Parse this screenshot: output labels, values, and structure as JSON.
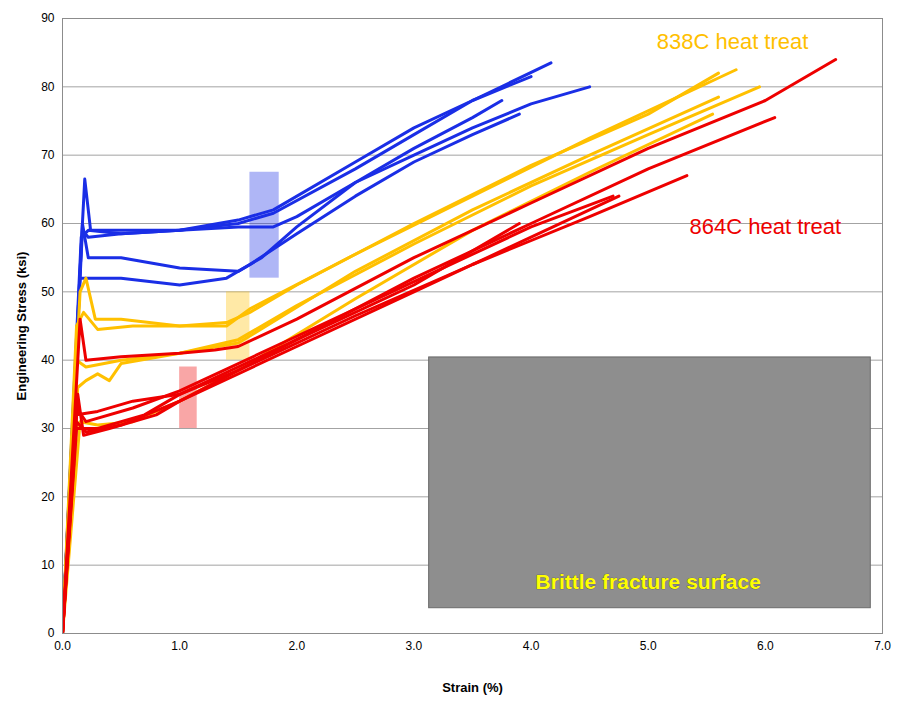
{
  "chart_data": {
    "type": "line",
    "x_label": "Strain (%)",
    "y_label": "Engineering Stress (ksi)",
    "xlim": [
      0,
      7
    ],
    "ylim": [
      0,
      90
    ],
    "xticks": [
      {
        "value": 0,
        "label": "0.0"
      },
      {
        "value": 1,
        "label": "1.0"
      },
      {
        "value": 2,
        "label": "2.0"
      },
      {
        "value": 3,
        "label": "3.0"
      },
      {
        "value": 4,
        "label": "4.0"
      },
      {
        "value": 5,
        "label": "5.0"
      },
      {
        "value": 6,
        "label": "6.0"
      },
      {
        "value": 7,
        "label": "7.0"
      }
    ],
    "yticks": [
      0,
      10,
      20,
      30,
      40,
      50,
      60,
      70,
      80,
      90
    ],
    "grid": true,
    "series": [
      {
        "color": "#1a2ee6",
        "x": [
          0,
          0.17,
          0.19,
          0.24,
          0.5,
          1.0,
          1.5,
          1.8,
          2.5,
          3.0,
          3.5,
          4.17
        ],
        "values": [
          0,
          60,
          66.5,
          59,
          59,
          59,
          60,
          61.5,
          68,
          73,
          78,
          83.5
        ]
      },
      {
        "color": "#1a2ee6",
        "x": [
          0,
          0.16,
          0.22,
          0.5,
          1.0,
          1.5,
          1.8,
          2.5,
          3.0,
          3.5,
          4.0
        ],
        "values": [
          0,
          58,
          59,
          58.5,
          59,
          60.5,
          62,
          69,
          74,
          78,
          81.5
        ]
      },
      {
        "color": "#1a2ee6",
        "x": [
          0,
          0.17,
          0.22,
          0.5,
          1.0,
          1.5,
          1.7,
          2.0,
          2.5,
          3.0,
          3.5,
          3.75
        ],
        "values": [
          0,
          60,
          55,
          55,
          53.5,
          53,
          55,
          59.5,
          66,
          71,
          75.5,
          78
        ]
      },
      {
        "color": "#1a2ee6",
        "x": [
          0,
          0.15,
          0.2,
          0.5,
          1.0,
          1.4,
          1.6,
          2.0,
          2.5,
          3.0,
          3.5,
          3.9
        ],
        "values": [
          0,
          52,
          52,
          52,
          51,
          52,
          54,
          58.5,
          64,
          69,
          73,
          76
        ]
      },
      {
        "color": "#1a2ee6",
        "x": [
          0,
          0.17,
          0.22,
          0.5,
          1.0,
          1.5,
          1.8,
          2.0,
          2.5,
          3.0,
          3.5,
          4.0,
          4.5
        ],
        "values": [
          0,
          59,
          58,
          58.5,
          59,
          59.5,
          59.5,
          61,
          66,
          70,
          74,
          77.5,
          80
        ]
      },
      {
        "color": "#ffc000",
        "x": [
          0,
          0.15,
          0.2,
          0.28,
          0.5,
          1.0,
          1.4,
          1.6,
          2.0,
          3.0,
          4.0,
          5.0,
          5.6
        ],
        "values": [
          0,
          50,
          52,
          46,
          46,
          45,
          45.5,
          47,
          51,
          60,
          68.5,
          76,
          82
        ]
      },
      {
        "color": "#ffc000",
        "x": [
          0,
          0.12,
          0.18,
          0.3,
          0.6,
          1.0,
          1.4,
          1.6,
          2.5,
          3.5,
          4.5,
          5.75
        ],
        "values": [
          0,
          45,
          47,
          44.5,
          45,
          45,
          45,
          47.5,
          55.5,
          64,
          72.5,
          82.5
        ]
      },
      {
        "color": "#ffc000",
        "x": [
          0,
          0.12,
          0.2,
          0.5,
          1.0,
          1.5,
          2.0,
          3.0,
          4.0,
          5.0,
          5.95
        ],
        "values": [
          0,
          40,
          39,
          40,
          41,
          43,
          48,
          57,
          65.5,
          73,
          80
        ]
      },
      {
        "color": "#ffc000",
        "x": [
          0,
          0.13,
          0.2,
          0.3,
          0.4,
          0.5,
          1.0,
          1.5,
          2.5,
          3.5,
          4.5,
          5.6
        ],
        "values": [
          0,
          36,
          37,
          38,
          37,
          39.5,
          41,
          42.5,
          53,
          62,
          70,
          78.5
        ]
      },
      {
        "color": "#ffc000",
        "x": [
          0,
          0.15,
          0.3,
          0.6,
          1.0,
          1.5,
          2.5,
          3.5,
          4.5,
          5.55
        ],
        "values": [
          0,
          31,
          30.5,
          31,
          34,
          38.5,
          49,
          59,
          67.5,
          76
        ]
      },
      {
        "color": "#ee0000",
        "x": [
          0,
          0.15,
          0.2,
          0.5,
          1.0,
          1.3,
          1.5,
          2.0,
          3.0,
          4.0,
          5.0,
          6.0,
          6.6
        ],
        "values": [
          0,
          46,
          40,
          40.5,
          41,
          41.5,
          42,
          46,
          55,
          63,
          71,
          78,
          84
        ]
      },
      {
        "color": "#ee0000",
        "x": [
          0,
          0.13,
          0.18,
          0.4,
          0.8,
          1.0,
          1.5,
          2.0,
          3.0,
          4.0,
          5.0,
          6.08
        ],
        "values": [
          0,
          35,
          29,
          30,
          32,
          34,
          38.5,
          43,
          52,
          60,
          68,
          75.5
        ]
      },
      {
        "color": "#ee0000",
        "x": [
          0,
          0.12,
          0.3,
          0.6,
          1.0,
          1.5,
          2.5,
          3.5,
          4.5,
          5.33
        ],
        "values": [
          0,
          32,
          32.5,
          34,
          35,
          38.5,
          46.5,
          54,
          61,
          67
        ]
      },
      {
        "color": "#ee0000",
        "x": [
          0,
          0.12,
          0.2,
          0.5,
          1.0,
          2.0,
          3.0,
          4.0,
          4.75
        ],
        "values": [
          0,
          31,
          29.5,
          30.5,
          34,
          42,
          50,
          58,
          64
        ]
      },
      {
        "color": "#ee0000",
        "x": [
          0,
          0.12,
          0.3,
          0.7,
          1.0,
          2.0,
          3.0,
          3.9
        ],
        "values": [
          0,
          30,
          30,
          32,
          35,
          43,
          51,
          60
        ]
      },
      {
        "color": "#ee0000",
        "x": [
          0,
          0.12,
          0.2,
          0.6,
          1.0,
          2.0,
          3.0,
          4.0,
          4.7
        ],
        "values": [
          0,
          33,
          31,
          33,
          35.5,
          43.5,
          51.5,
          59.5,
          64
        ]
      }
    ],
    "regions": [
      {
        "x": [
          1.6,
          1.85
        ],
        "y": [
          52,
          67.5
        ],
        "color": "#1a2ee6"
      },
      {
        "x": [
          1.4,
          1.6
        ],
        "y": [
          40,
          50
        ],
        "color": "#ffc000"
      },
      {
        "x": [
          1.0,
          1.15
        ],
        "y": [
          30,
          39
        ],
        "color": "#ee0000"
      }
    ],
    "annotations": [
      {
        "text": "838C heat treat",
        "x": 5.72,
        "y": 86.5,
        "color": "#ffc000"
      },
      {
        "text": "864C heat treat",
        "x": 6.0,
        "y": 59.5,
        "color": "#ee0000"
      }
    ],
    "inset": {
      "x": [
        3.13,
        6.9
      ],
      "y": [
        3.7,
        40.4
      ],
      "text": "Brittle fracture surface",
      "text_x": 5.0,
      "text_y": 7.5,
      "text_color": "#ffff00"
    }
  }
}
